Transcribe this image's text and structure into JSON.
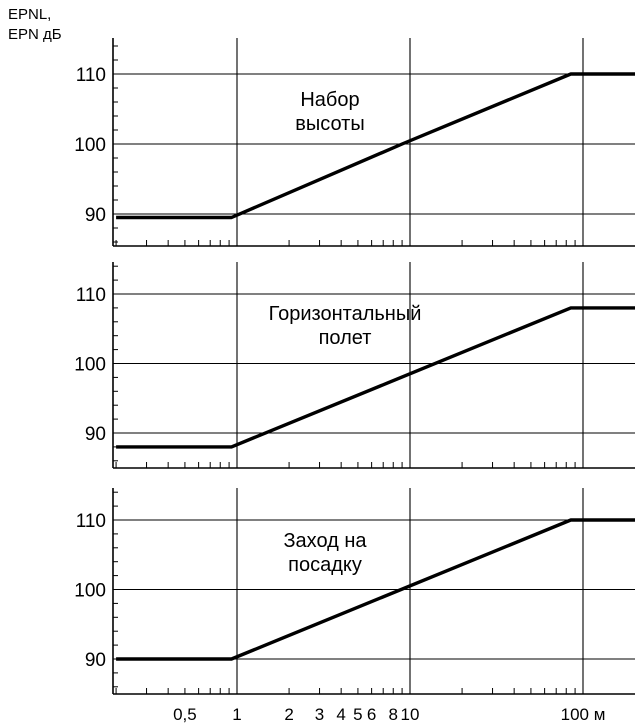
{
  "chart_data": [
    {
      "type": "line",
      "ylabel": "EPNL,\nEPN дБ",
      "ylabel_lines": [
        "EPNL,",
        "EPN дБ"
      ],
      "annotation_lines": [
        "Набор",
        "высоты"
      ],
      "x_scale": "log",
      "y_ticks": [
        90,
        100,
        110
      ],
      "y_tick_labels": [
        "90",
        "100",
        "110"
      ],
      "ylim": [
        85,
        115
      ],
      "x": [
        0.2,
        0.93,
        9,
        85,
        200
      ],
      "y": [
        89.5,
        89.5,
        100,
        110,
        110
      ]
    },
    {
      "type": "line",
      "annotation_lines": [
        "Горизонтальный",
        "полет"
      ],
      "x_scale": "log",
      "y_ticks": [
        90,
        100,
        110
      ],
      "y_tick_labels": [
        "90",
        "100",
        "110"
      ],
      "ylim": [
        85,
        115
      ],
      "x": [
        0.2,
        0.93,
        85,
        200
      ],
      "y": [
        88,
        88,
        108,
        108
      ]
    },
    {
      "type": "line",
      "annotation_lines": [
        "Заход на",
        "посадку"
      ],
      "x_scale": "log",
      "y_ticks": [
        90,
        100,
        110
      ],
      "y_tick_labels": [
        "90",
        "100",
        "110"
      ],
      "ylim": [
        85,
        115
      ],
      "xlabel": "м",
      "x_tick_labels": [
        "0,5",
        "1",
        "2",
        "3",
        "4",
        "5",
        "6",
        "8",
        "10",
        "100 м"
      ],
      "x_tick_values": [
        0.5,
        1,
        2,
        3,
        4,
        5,
        6,
        8,
        10,
        100
      ],
      "x": [
        0.2,
        0.93,
        85,
        200
      ],
      "y": [
        90,
        90,
        110,
        110
      ]
    }
  ]
}
